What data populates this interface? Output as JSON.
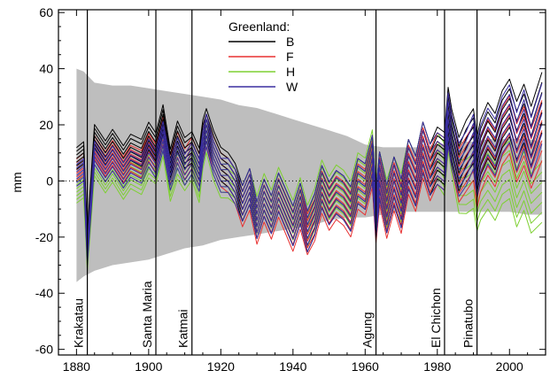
{
  "chart_data": {
    "type": "line",
    "title": "",
    "xlabel": "",
    "ylabel": "mm",
    "xlim": [
      1875,
      2010
    ],
    "ylim": [
      -62,
      61
    ],
    "xticks": [
      1880,
      1900,
      1920,
      1940,
      1960,
      1980,
      2000
    ],
    "yticks": [
      -60,
      -40,
      -20,
      0,
      20,
      40,
      60
    ],
    "xtick_labels": [
      "1880",
      "1900",
      "1920",
      "1940",
      "1960",
      "1980",
      "2000"
    ],
    "ytick_labels": [
      "-60",
      "-40",
      "-20",
      "0",
      "20",
      "40",
      "60"
    ],
    "zero_line": "dotted",
    "grid": false,
    "legend": {
      "title": "Greenland:",
      "placement": "top-center",
      "entries": [
        "B",
        "F",
        "H",
        "W"
      ]
    },
    "uncertainty_band": {
      "color": "#bebebe",
      "x": [
        1880,
        1882,
        1885,
        1890,
        1895,
        1900,
        1905,
        1910,
        1915,
        1920,
        1925,
        1930,
        1935,
        1940,
        1945,
        1950,
        1955,
        1960,
        1965,
        1970,
        1975,
        1980,
        1985,
        1990,
        1995,
        2000,
        2005,
        2009
      ],
      "upper": [
        40,
        39,
        35,
        34,
        34,
        33,
        32,
        31,
        30,
        29,
        27,
        26,
        24,
        22,
        20,
        18,
        16,
        13,
        12,
        12,
        12,
        13,
        14,
        14,
        15,
        15,
        15,
        14
      ],
      "lower": [
        -36,
        -34,
        -32,
        -30,
        -29,
        -28,
        -26,
        -24,
        -23,
        -21,
        -20,
        -19,
        -18,
        -17,
        -16,
        -14,
        -13,
        -13,
        -12,
        -11,
        -11,
        -11,
        -11,
        -11,
        -11,
        -11,
        -12,
        -12
      ]
    },
    "series": [
      {
        "name": "B",
        "color": "#000000",
        "x": [
          1880,
          1882,
          1883,
          1885,
          1888,
          1890,
          1893,
          1895,
          1898,
          1900,
          1902,
          1904,
          1906,
          1908,
          1910,
          1912,
          1914,
          1915,
          1916,
          1918,
          1920,
          1922,
          1924,
          1926,
          1928,
          1930,
          1932,
          1934,
          1936,
          1938,
          1940,
          1942,
          1944,
          1946,
          1948,
          1950,
          1952,
          1954,
          1956,
          1958,
          1960,
          1962,
          1963,
          1964,
          1966,
          1968,
          1970,
          1972,
          1974,
          1976,
          1978,
          1980,
          1982,
          1983,
          1984,
          1986,
          1988,
          1990,
          1991,
          1992,
          1994,
          1996,
          1998,
          2000,
          2002,
          2004,
          2006,
          2009
        ],
        "y": [
          8,
          10,
          -22,
          16,
          10,
          14,
          8,
          12,
          10,
          16,
          12,
          22,
          6,
          16,
          10,
          12,
          6,
          16,
          20,
          12,
          6,
          4,
          0,
          -8,
          -2,
          -14,
          -6,
          -12,
          -4,
          -10,
          -16,
          -8,
          -18,
          -12,
          -2,
          -8,
          -4,
          -6,
          -10,
          0,
          -2,
          8,
          -12,
          2,
          -10,
          0,
          -8,
          6,
          0,
          12,
          4,
          10,
          8,
          24,
          16,
          6,
          12,
          16,
          6,
          12,
          18,
          14,
          22,
          26,
          18,
          24,
          16,
          28
        ]
      },
      {
        "name": "F",
        "color": "#e83030",
        "x": [
          1880,
          1882,
          1883,
          1885,
          1888,
          1890,
          1893,
          1895,
          1898,
          1900,
          1902,
          1904,
          1906,
          1908,
          1910,
          1912,
          1914,
          1915,
          1916,
          1918,
          1920,
          1922,
          1924,
          1926,
          1928,
          1930,
          1932,
          1934,
          1936,
          1938,
          1940,
          1942,
          1944,
          1946,
          1948,
          1950,
          1952,
          1954,
          1956,
          1958,
          1960,
          1962,
          1963,
          1964,
          1966,
          1968,
          1970,
          1972,
          1974,
          1976,
          1978,
          1980,
          1982,
          1983,
          1984,
          1986,
          1988,
          1990,
          1991,
          1992,
          1994,
          1996,
          1998,
          2000,
          2002,
          2004,
          2006,
          2009
        ],
        "y": [
          4,
          6,
          -24,
          12,
          6,
          10,
          4,
          8,
          6,
          12,
          8,
          18,
          4,
          12,
          6,
          10,
          4,
          14,
          18,
          10,
          4,
          2,
          -2,
          -10,
          -4,
          -16,
          -8,
          -14,
          -6,
          -12,
          -18,
          -10,
          -19,
          -14,
          -4,
          -10,
          -6,
          -8,
          -12,
          -2,
          -4,
          6,
          -14,
          0,
          -12,
          -2,
          -10,
          4,
          -2,
          10,
          2,
          8,
          6,
          22,
          14,
          2,
          6,
          10,
          0,
          6,
          12,
          8,
          16,
          20,
          10,
          16,
          8,
          18
        ]
      },
      {
        "name": "H",
        "color": "#7ed032",
        "x": [
          1880,
          1882,
          1883,
          1885,
          1888,
          1890,
          1893,
          1895,
          1898,
          1900,
          1902,
          1904,
          1906,
          1908,
          1910,
          1912,
          1914,
          1915,
          1916,
          1918,
          1920,
          1922,
          1924,
          1926,
          1928,
          1930,
          1932,
          1934,
          1936,
          1938,
          1940,
          1942,
          1944,
          1946,
          1948,
          1950,
          1952,
          1954,
          1956,
          1958,
          1960,
          1962,
          1963,
          1964,
          1966,
          1968,
          1970,
          1972,
          1974,
          1976,
          1978,
          1980,
          1982,
          1983,
          1984,
          1986,
          1988,
          1990,
          1991,
          1992,
          1994,
          1996,
          1998,
          2000,
          2002,
          2004,
          2006,
          2009
        ],
        "y": [
          -4,
          -2,
          -28,
          6,
          0,
          4,
          -2,
          2,
          0,
          6,
          4,
          14,
          -2,
          6,
          2,
          6,
          -2,
          10,
          16,
          6,
          0,
          0,
          -2,
          -8,
          -2,
          -12,
          -4,
          -10,
          -2,
          -8,
          -14,
          -6,
          -16,
          -10,
          0,
          -6,
          -2,
          -4,
          -8,
          2,
          0,
          10,
          -10,
          2,
          -8,
          0,
          -6,
          6,
          0,
          12,
          4,
          8,
          4,
          20,
          12,
          -2,
          -2,
          0,
          -8,
          -4,
          0,
          -4,
          2,
          4,
          -6,
          0,
          -8,
          -4
        ]
      },
      {
        "name": "W",
        "color": "#3a2ea0",
        "x": [
          1880,
          1882,
          1883,
          1885,
          1888,
          1890,
          1893,
          1895,
          1898,
          1900,
          1902,
          1904,
          1906,
          1908,
          1910,
          1912,
          1914,
          1915,
          1916,
          1918,
          1920,
          1922,
          1924,
          1926,
          1928,
          1930,
          1932,
          1934,
          1936,
          1938,
          1940,
          1942,
          1944,
          1946,
          1948,
          1950,
          1952,
          1954,
          1956,
          1958,
          1960,
          1962,
          1963,
          1964,
          1966,
          1968,
          1970,
          1972,
          1974,
          1976,
          1978,
          1980,
          1982,
          1983,
          1984,
          1986,
          1988,
          1990,
          1991,
          1992,
          1994,
          1996,
          1998,
          2000,
          2002,
          2004,
          2006,
          2009
        ],
        "y": [
          2,
          4,
          -26,
          10,
          4,
          8,
          2,
          6,
          4,
          10,
          6,
          16,
          2,
          10,
          4,
          8,
          2,
          12,
          18,
          8,
          2,
          2,
          -2,
          -8,
          -2,
          -14,
          -6,
          -12,
          -4,
          -10,
          -16,
          -8,
          -18,
          -12,
          -2,
          -8,
          -4,
          -6,
          -10,
          0,
          -2,
          8,
          -12,
          2,
          -10,
          0,
          -8,
          6,
          0,
          12,
          4,
          8,
          6,
          22,
          14,
          4,
          8,
          14,
          4,
          10,
          16,
          12,
          20,
          24,
          14,
          22,
          12,
          24
        ]
      }
    ],
    "ensemble_offsets": [
      -6,
      -4,
      -2,
      0,
      2,
      4,
      6
    ],
    "events": [
      {
        "label": "Krakatau",
        "year": 1883
      },
      {
        "label": "Santa Maria",
        "year": 1902
      },
      {
        "label": "Katmai",
        "year": 1912
      },
      {
        "label": "Agung",
        "year": 1963
      },
      {
        "label": "El Chichon",
        "year": 1982
      },
      {
        "label": "Pinatubo",
        "year": 1991
      }
    ]
  }
}
